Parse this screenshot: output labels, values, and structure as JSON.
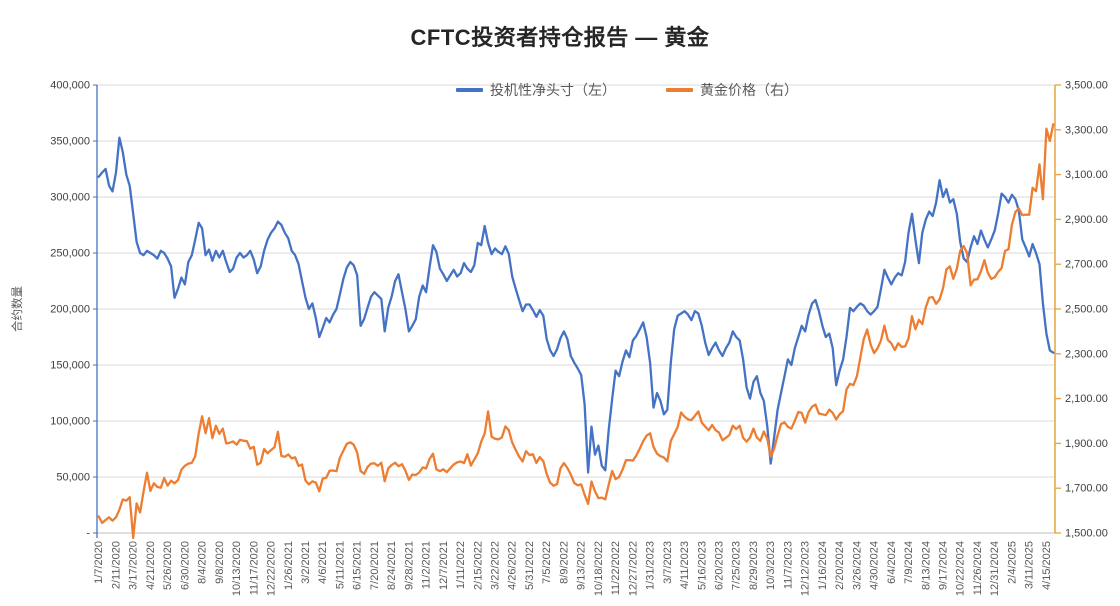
{
  "title": "CFTC投资者持仓报告 — 黄金",
  "legend_items": [
    {
      "label": "投机性净头寸（左）",
      "color": "#4472C4"
    },
    {
      "label": "黄金价格（右）",
      "color": "#ED7D31"
    }
  ],
  "chart_data": {
    "type": "line",
    "title": "CFTC投资者持仓报告 — 黄金",
    "legend_position": "top",
    "grid": true,
    "grid_color": "#D9D9D9",
    "x_axis": {
      "points_per_label": 5,
      "tick_labels": [
        "1/7/2020",
        "2/11/2020",
        "3/17/2020",
        "4/21/2020",
        "5/26/2020",
        "6/30/2020",
        "8/4/2020",
        "9/8/2020",
        "10/13/2020",
        "11/17/2020",
        "12/22/2020",
        "1/26/2021",
        "3/2/2021",
        "4/6/2021",
        "5/11/2021",
        "6/15/2021",
        "7/20/2021",
        "8/24/2021",
        "9/28/2021",
        "11/2/2021",
        "12/7/2021",
        "1/11/2022",
        "2/15/2022",
        "3/22/2022",
        "4/26/2022",
        "5/31/2022",
        "7/5/2022",
        "8/9/2022",
        "9/13/2022",
        "10/18/2022",
        "11/22/2022",
        "12/27/2022",
        "1/31/2023",
        "3/7/2023",
        "4/11/2023",
        "5/16/2023",
        "6/20/2023",
        "7/25/2023",
        "8/29/2023",
        "10/3/2023",
        "11/7/2023",
        "12/12/2023",
        "1/16/2024",
        "2/20/2024",
        "3/26/2024",
        "4/30/2024",
        "6/4/2024",
        "7/9/2024",
        "8/13/2024",
        "9/17/2024",
        "10/22/2024",
        "11/26/2024",
        "12/31/2024",
        "2/4/2025",
        "3/11/2025",
        "4/15/2025"
      ]
    },
    "axes": {
      "left": {
        "title": "合约数量",
        "min": 0,
        "max": 400000,
        "step": 50000,
        "color": "#4472C4",
        "tick_labels": [
          "400,000",
          "350,000",
          "300,000",
          "250,000",
          "200,000",
          "150,000",
          "100,000",
          "50,000",
          "-"
        ]
      },
      "right": {
        "min": 1500,
        "max": 3500,
        "step": 200,
        "color": "#E8A33D",
        "tick_labels": [
          "3,500.00",
          "3,300.00",
          "3,100.00",
          "2,900.00",
          "2,700.00",
          "2,500.00",
          "2,300.00",
          "2,100.00",
          "1,900.00",
          "1,700.00",
          "1,500.00"
        ]
      }
    },
    "series": [
      {
        "name": "投机性净头寸（左）",
        "axis": "left",
        "color": "#4472C4",
        "line_width": 2.3,
        "values": [
          318000,
          322000,
          325000,
          310000,
          305000,
          322000,
          353000,
          340000,
          320000,
          310000,
          285000,
          260000,
          250000,
          248000,
          252000,
          250000,
          248000,
          245000,
          252000,
          250000,
          245000,
          238000,
          210000,
          218000,
          228000,
          222000,
          242000,
          248000,
          262000,
          277000,
          272000,
          248000,
          253000,
          243000,
          252000,
          246000,
          252000,
          242000,
          233000,
          236000,
          246000,
          250000,
          246000,
          248000,
          252000,
          244000,
          232000,
          238000,
          252000,
          262000,
          268000,
          272000,
          278000,
          275000,
          268000,
          263000,
          252000,
          248000,
          240000,
          225000,
          210000,
          200000,
          205000,
          192000,
          175000,
          183000,
          192000,
          188000,
          195000,
          200000,
          213000,
          227000,
          237000,
          242000,
          239000,
          230000,
          185000,
          191000,
          201000,
          211000,
          215000,
          212000,
          209000,
          180000,
          201000,
          211000,
          225000,
          231000,
          215000,
          200000,
          180000,
          185000,
          191000,
          211000,
          221000,
          215000,
          237000,
          257000,
          251000,
          236000,
          231000,
          225000,
          230000,
          235000,
          229000,
          232000,
          241000,
          236000,
          233000,
          239000,
          259000,
          257000,
          274000,
          259000,
          249000,
          254000,
          251000,
          249000,
          256000,
          249000,
          229000,
          218000,
          208000,
          198000,
          204000,
          204000,
          199000,
          193000,
          199000,
          194000,
          173000,
          163000,
          158000,
          164000,
          174000,
          180000,
          173000,
          158000,
          152000,
          147000,
          141000,
          115000,
          54000,
          95000,
          70000,
          78000,
          60000,
          56000,
          92000,
          120000,
          145000,
          140000,
          153000,
          163000,
          157000,
          172000,
          176000,
          182000,
          188000,
          175000,
          152000,
          112000,
          125000,
          118000,
          106000,
          110000,
          152000,
          182000,
          194000,
          196000,
          198000,
          195000,
          190000,
          198000,
          196000,
          185000,
          170000,
          159000,
          165000,
          170000,
          163000,
          158000,
          165000,
          170000,
          180000,
          175000,
          172000,
          155000,
          130000,
          120000,
          135000,
          140000,
          125000,
          118000,
          95000,
          62000,
          85000,
          110000,
          125000,
          140000,
          155000,
          150000,
          165000,
          175000,
          185000,
          180000,
          195000,
          205000,
          208000,
          198000,
          185000,
          175000,
          178000,
          165000,
          132000,
          145000,
          155000,
          175000,
          201000,
          198000,
          202000,
          205000,
          203000,
          198000,
          195000,
          198000,
          202000,
          218000,
          235000,
          228000,
          222000,
          228000,
          232000,
          230000,
          242000,
          268000,
          285000,
          262000,
          241000,
          268000,
          280000,
          287000,
          283000,
          295000,
          315000,
          300000,
          307000,
          295000,
          298000,
          285000,
          260000,
          245000,
          242000,
          255000,
          265000,
          258000,
          270000,
          262000,
          255000,
          262000,
          270000,
          285000,
          303000,
          300000,
          295000,
          302000,
          298000,
          288000,
          262000,
          255000,
          247000,
          258000,
          250000,
          240000,
          205000,
          178000,
          163000,
          161000
        ]
      },
      {
        "name": "黄金价格（右）",
        "axis": "right",
        "color": "#ED7D31",
        "line_width": 2.3,
        "values": [
          1574,
          1545,
          1558,
          1570,
          1555,
          1570,
          1604,
          1650,
          1644,
          1660,
          1478,
          1632,
          1592,
          1684,
          1769,
          1688,
          1722,
          1706,
          1702,
          1745,
          1711,
          1734,
          1722,
          1736,
          1782,
          1800,
          1810,
          1813,
          1842,
          1944,
          2021,
          1946,
          2013,
          1923,
          1979,
          1943,
          1966,
          1900,
          1903,
          1909,
          1894,
          1916,
          1912,
          1910,
          1876,
          1885,
          1805,
          1814,
          1875,
          1856,
          1870,
          1883,
          1952,
          1844,
          1840,
          1851,
          1833,
          1838,
          1799,
          1806,
          1734,
          1717,
          1731,
          1725,
          1686,
          1743,
          1747,
          1778,
          1779,
          1776,
          1836,
          1868,
          1898,
          1905,
          1894,
          1859,
          1777,
          1764,
          1794,
          1810,
          1811,
          1800,
          1814,
          1731,
          1788,
          1803,
          1814,
          1798,
          1807,
          1778,
          1737,
          1761,
          1759,
          1770,
          1793,
          1788,
          1831,
          1854,
          1784,
          1776,
          1785,
          1772,
          1789,
          1806,
          1815,
          1819,
          1812,
          1852,
          1801,
          1828,
          1856,
          1907,
          1944,
          2043,
          1930,
          1921,
          1918,
          1927,
          1976,
          1959,
          1904,
          1871,
          1841,
          1819,
          1865,
          1848,
          1852,
          1813,
          1839,
          1821,
          1764,
          1724,
          1711,
          1718,
          1789,
          1812,
          1790,
          1761,
          1723,
          1713,
          1717,
          1671,
          1630,
          1730,
          1686,
          1656,
          1658,
          1650,
          1716,
          1777,
          1740,
          1750,
          1782,
          1825,
          1825,
          1823,
          1846,
          1877,
          1910,
          1935,
          1945,
          1885,
          1854,
          1843,
          1837,
          1820,
          1911,
          1941,
          1974,
          2038,
          2019,
          2007,
          2004,
          2023,
          2043,
          1993,
          1975,
          1959,
          1982,
          1959,
          1948,
          1914,
          1925,
          1937,
          1979,
          1964,
          1979,
          1925,
          1908,
          1926,
          1966,
          1926,
          1911,
          1953,
          1920,
          1841,
          1875,
          1936,
          1986,
          1994,
          1974,
          1966,
          2001,
          2040,
          2036,
          1993,
          2040,
          2064,
          2073,
          2033,
          2030,
          2026,
          2051,
          2036,
          2007,
          2030,
          2044,
          2141,
          2166,
          2160,
          2200,
          2282,
          2365,
          2408,
          2342,
          2303,
          2324,
          2360,
          2426,
          2361,
          2347,
          2317,
          2347,
          2331,
          2333,
          2368,
          2468,
          2410,
          2452,
          2432,
          2508,
          2551,
          2553,
          2523,
          2543,
          2592,
          2677,
          2690,
          2635,
          2679,
          2760,
          2781,
          2750,
          2606,
          2631,
          2633,
          2668,
          2718,
          2662,
          2635,
          2641,
          2665,
          2683,
          2759,
          2767,
          2876,
          2933,
          2949,
          2919,
          2921,
          2921,
          3041,
          3026,
          3146,
          2990,
          3305,
          3250,
          3325
        ]
      }
    ]
  }
}
